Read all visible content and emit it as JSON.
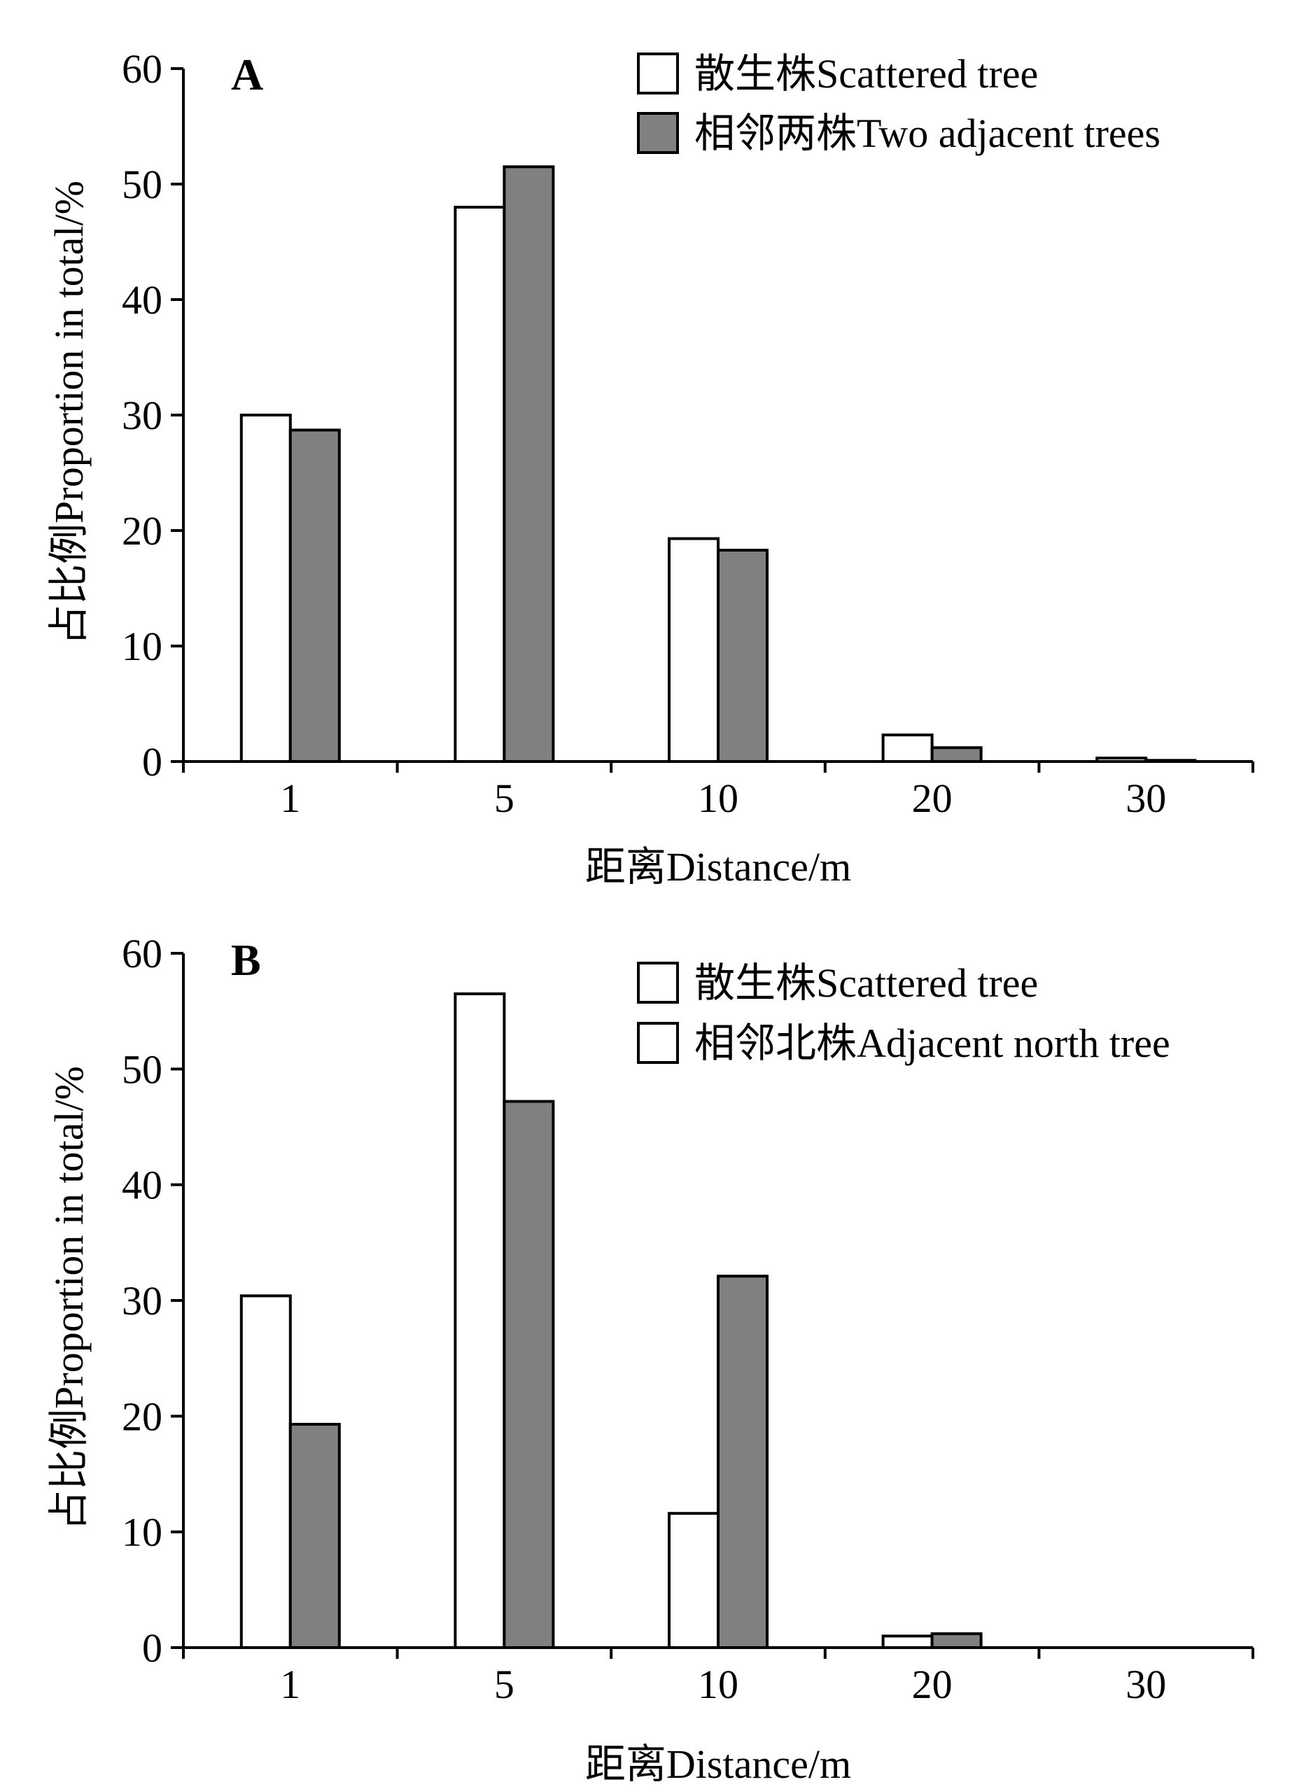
{
  "chart_data": [
    {
      "type": "bar",
      "panel_label": "A",
      "categories": [
        "1",
        "5",
        "10",
        "20",
        "30"
      ],
      "series": [
        {
          "name": "散生株Scattered tree",
          "values": [
            30.0,
            48.0,
            19.3,
            2.3,
            0.3
          ],
          "color": "#ffffff"
        },
        {
          "name": "相邻两株Two adjacent trees",
          "values": [
            28.7,
            51.5,
            18.3,
            1.2,
            0.1
          ],
          "color": "#808080"
        }
      ],
      "xlabel": "距离Distance/m",
      "ylabel": "占比例Proportion in total/%",
      "ylim": [
        0,
        60
      ],
      "yticks": [
        0,
        10,
        20,
        30,
        40,
        50,
        60
      ],
      "grid": false,
      "legend_position": "top-right"
    },
    {
      "type": "bar",
      "panel_label": "B",
      "categories": [
        "1",
        "5",
        "10",
        "20",
        "30"
      ],
      "series": [
        {
          "name": "散生株Scattered tree",
          "values": [
            30.4,
            56.5,
            11.6,
            1.0,
            0
          ],
          "color": "#ffffff"
        },
        {
          "name": "相邻北株Adjacent north tree",
          "values": [
            19.3,
            47.2,
            32.1,
            1.2,
            0
          ],
          "color": "#808080"
        }
      ],
      "legend_swatch_colors": [
        "#ffffff",
        "#ffffff"
      ],
      "xlabel": "距离Distance/m",
      "ylabel": "占比例Proportion in total/%",
      "ylim": [
        0,
        60
      ],
      "yticks": [
        0,
        10,
        20,
        30,
        40,
        50,
        60
      ],
      "grid": false,
      "legend_position": "top-right"
    }
  ]
}
